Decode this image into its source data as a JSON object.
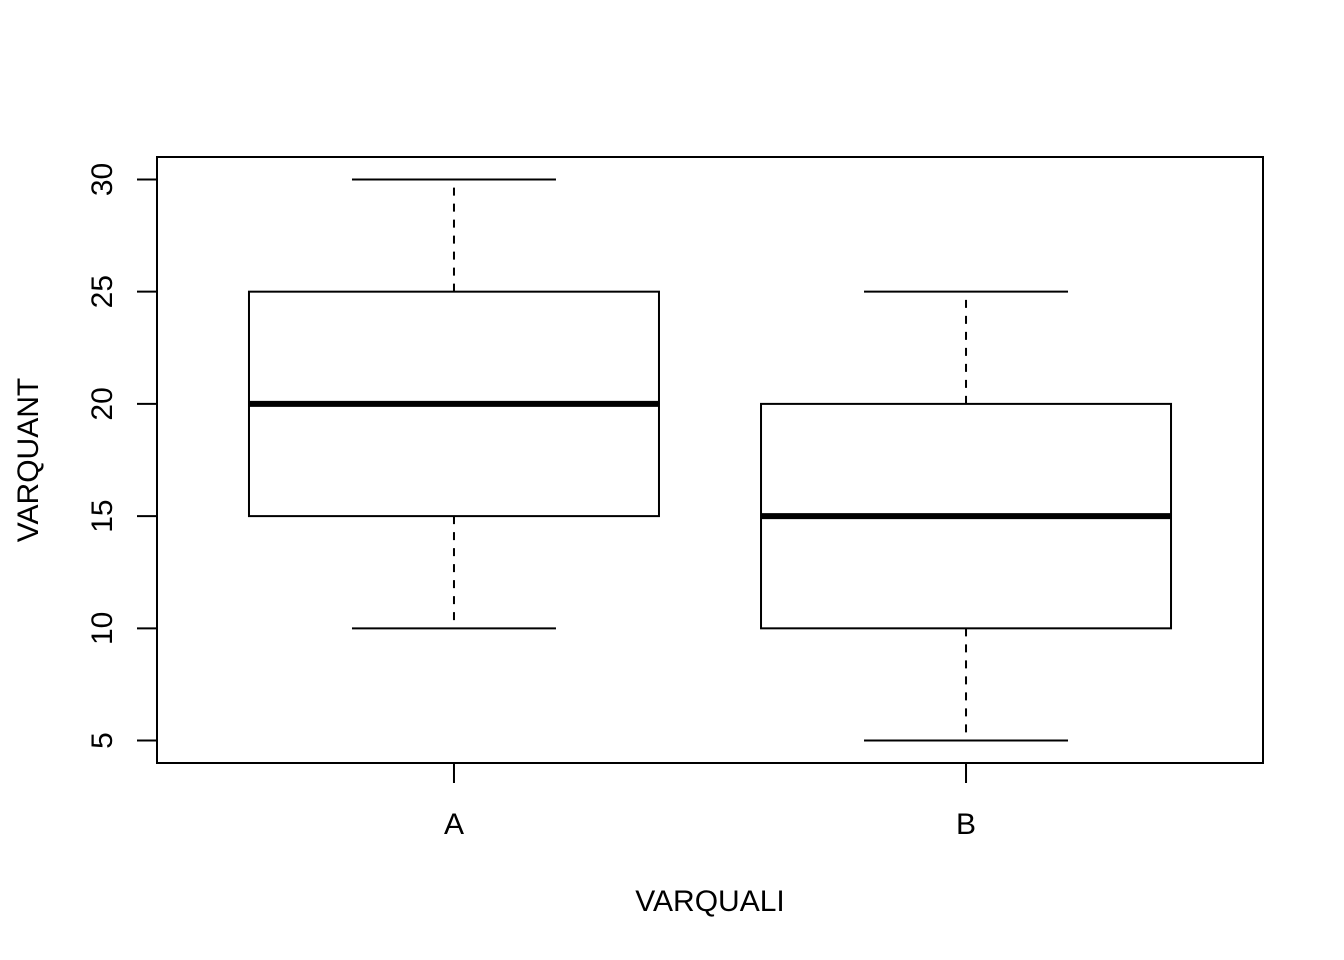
{
  "chart_data": {
    "type": "box",
    "title": "",
    "xlabel": "VARQUALI",
    "ylabel": "VARQUANT",
    "categories": [
      "A",
      "B"
    ],
    "boxes": [
      {
        "category": "A",
        "min": 10,
        "q1": 15,
        "median": 20,
        "q3": 25,
        "max": 30
      },
      {
        "category": "B",
        "min": 5,
        "q1": 10,
        "median": 15,
        "q3": 20,
        "max": 25
      }
    ],
    "yticks": [
      5,
      10,
      15,
      20,
      25,
      30
    ],
    "ytick_labels": [
      "5",
      "10",
      "15",
      "20",
      "25",
      "30"
    ],
    "ylim": [
      4,
      31
    ],
    "grid": false,
    "colors": {
      "stroke": "#000000",
      "fill": "#ffffff"
    }
  }
}
